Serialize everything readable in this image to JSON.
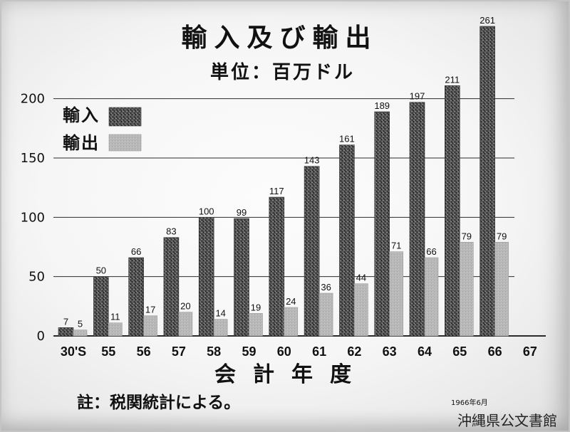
{
  "chart_data": {
    "type": "bar",
    "title": "輸入及び輸出",
    "subtitle": "単位：百万ドル",
    "xlabel": "会計年度",
    "categories": [
      "30'S",
      "55",
      "56",
      "57",
      "58",
      "59",
      "60",
      "61",
      "62",
      "63",
      "64",
      "65",
      "66",
      "67"
    ],
    "series": [
      {
        "name": "輸入",
        "color": "#555555",
        "values": [
          7,
          50,
          66,
          83,
          100,
          99,
          117,
          143,
          161,
          189,
          197,
          211,
          261,
          null
        ]
      },
      {
        "name": "輸出",
        "color": "#b8b8b8",
        "values": [
          5,
          11,
          17,
          20,
          14,
          19,
          24,
          36,
          44,
          71,
          66,
          79,
          79,
          null
        ]
      }
    ],
    "yticks": [
      0,
      50,
      100,
      150,
      200
    ],
    "ylim": [
      0,
      270
    ],
    "grid": true,
    "legend_position": "top-left",
    "data_labels": true
  },
  "footnote": "註：税関統計による。",
  "date_stamp": "1966年6月",
  "watermark": "沖縄県公文書館"
}
